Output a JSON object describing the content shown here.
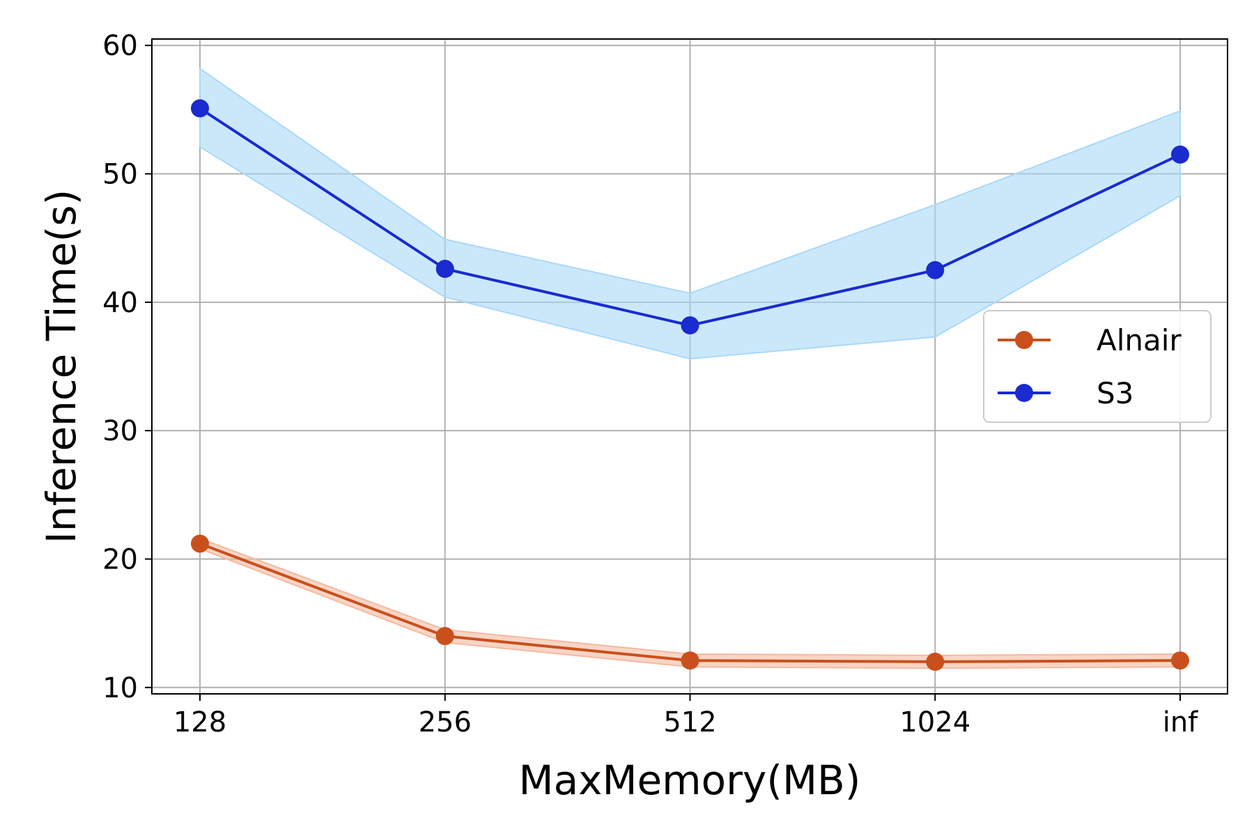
{
  "chart_data": {
    "type": "line",
    "title": "",
    "xlabel": "MaxMemory(MB)",
    "ylabel": "Inference Time(s)",
    "categories": [
      "128",
      "256",
      "512",
      "1024",
      "inf"
    ],
    "ylim": [
      9.5,
      60.5
    ],
    "yticks": [
      10,
      20,
      30,
      40,
      50,
      60
    ],
    "grid": true,
    "legend_position": "center-right",
    "series": [
      {
        "name": "Alnair",
        "color": "#c9501c",
        "band_color": "#f4b9a0",
        "values": [
          21.2,
          14.0,
          12.1,
          12.0,
          12.1
        ],
        "lower": [
          20.8,
          13.5,
          11.6,
          11.5,
          11.6
        ],
        "upper": [
          21.6,
          14.5,
          12.6,
          12.5,
          12.6
        ]
      },
      {
        "name": "S3",
        "color": "#1a2bcf",
        "band_color": "#a9d8f9",
        "values": [
          55.1,
          42.6,
          38.2,
          42.5,
          51.5
        ],
        "lower": [
          52.1,
          40.4,
          35.6,
          37.3,
          48.3
        ],
        "upper": [
          58.2,
          44.9,
          40.7,
          47.6,
          54.9
        ]
      }
    ]
  }
}
